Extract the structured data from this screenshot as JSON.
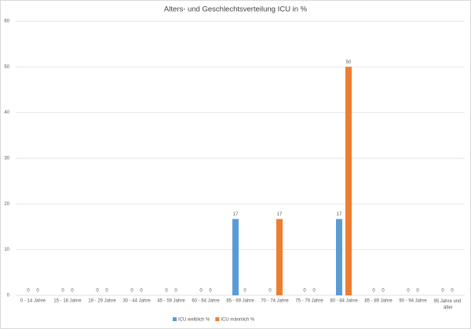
{
  "chart_data": {
    "type": "bar",
    "title": "Alters- und Geschlechtsverteilung ICU in %",
    "categories": [
      "0 - 14 Jahre",
      "15 - 18 Jahre",
      "19 - 29 Jahre",
      "30 - 44 Jahre",
      "45 - 59 Jahre",
      "60 - 64 Jahre",
      "65 - 69 Jahre",
      "70 - 74 Jahre",
      "75 - 79 Jahre",
      "80 - 84 Jahre",
      "85 - 89 Jahre",
      "90 - 94 Jahre",
      "95 Jahre und älter"
    ],
    "series": [
      {
        "name": "ICU weiblich %",
        "color": "#5b9bd5",
        "values": [
          0,
          0,
          0,
          0,
          0,
          0,
          16.7,
          0,
          0,
          16.7,
          0,
          0,
          0
        ],
        "value_labels": [
          "0",
          "0",
          "0",
          "0",
          "0",
          "0",
          "17",
          "0",
          "0",
          "17",
          "0",
          "0",
          "0"
        ]
      },
      {
        "name": "ICU männlich %",
        "color": "#ed7d31",
        "values": [
          0,
          0,
          0,
          0,
          0,
          0,
          0,
          16.7,
          0,
          50,
          0,
          0,
          0
        ],
        "value_labels": [
          "0",
          "0",
          "0",
          "0",
          "0",
          "0",
          "0",
          "17",
          "0",
          "50",
          "0",
          "0",
          "0"
        ]
      }
    ],
    "ylim": [
      0,
      60
    ],
    "yticks": [
      0,
      10,
      20,
      30,
      40,
      50,
      60
    ],
    "grid": true,
    "legend": "bottom"
  }
}
